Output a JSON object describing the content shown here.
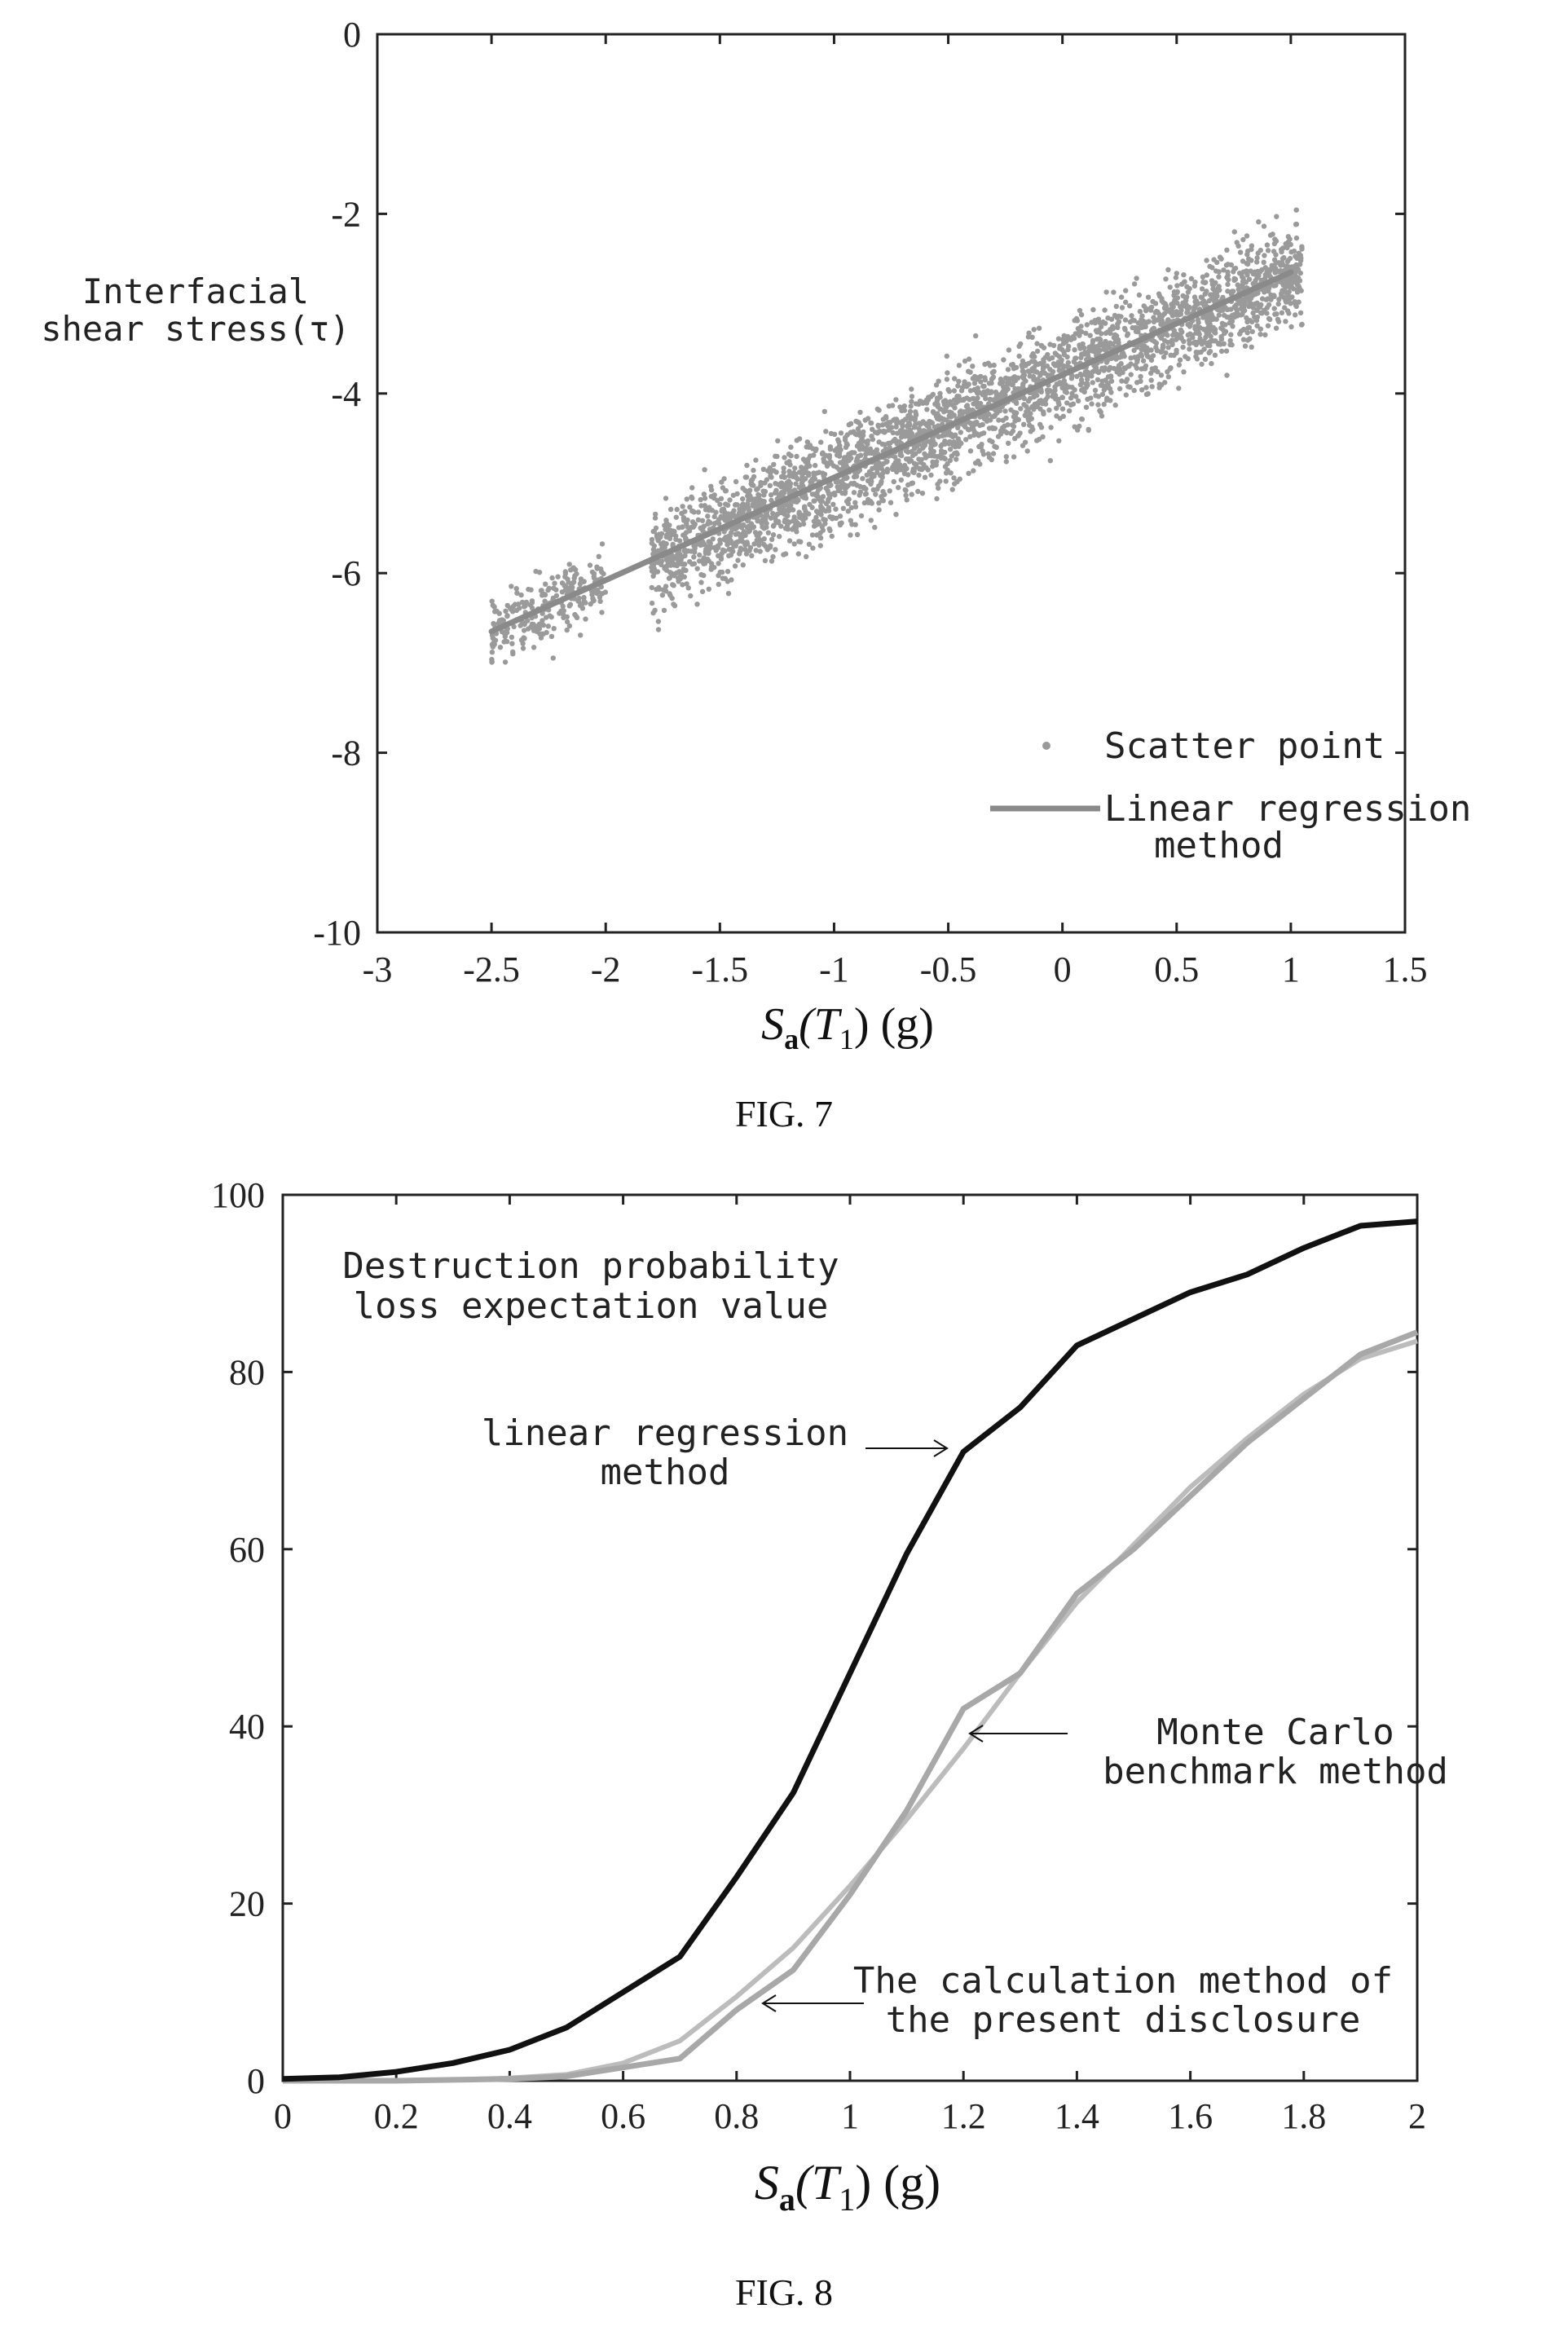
{
  "fig7": {
    "caption": "FIG. 7",
    "ylabel_line1": "Interfacial",
    "ylabel_line2": "shear stress(τ)",
    "xlabel_main": "S",
    "xlabel_sub": "a",
    "xlabel_paren": "(T",
    "xlabel_sub2": "1",
    "xlabel_end": ") (g)",
    "legend_scatter": "Scatter point",
    "legend_line1": "Linear regression",
    "legend_line2": "method",
    "chart_data": {
      "type": "scatter",
      "xlim": [
        -3,
        1.5
      ],
      "ylim": [
        -10,
        0
      ],
      "xticks": [
        "-3",
        "-2.5",
        "-2",
        "-1.5",
        "-1",
        "-0.5",
        "0",
        "0.5",
        "1",
        "1.5"
      ],
      "yticks": [
        "0",
        "-2",
        "-4",
        "-6",
        "-8",
        "-10"
      ],
      "regression": {
        "x": [
          -2.5,
          1.0
        ],
        "y": [
          -6.65,
          -2.65
        ]
      },
      "clusters": [
        {
          "x_range": [
            -2.5,
            -2.0
          ],
          "y_center_slope": 1.143,
          "y_center_intercept": -3.8,
          "spread": 0.35,
          "count": 260
        },
        {
          "x_range": [
            -1.8,
            1.05
          ],
          "y_center_slope": 1.143,
          "y_center_intercept": -3.8,
          "spread": 0.5,
          "count": 3200
        }
      ],
      "scatter_color": "#9a9a9a",
      "line_color": "#8a8a8a",
      "legend_position": "bottom-right",
      "grid": false
    }
  },
  "fig8": {
    "caption": "FIG. 8",
    "title_line1": "Destruction probability",
    "title_line2": "loss expectation value",
    "ann_linear_1": "linear regression",
    "ann_linear_2": "method",
    "ann_mc_1": "Monte Carlo",
    "ann_mc_2": "benchmark method",
    "ann_calc_1": "The calculation method of",
    "ann_calc_2": "the present disclosure",
    "xlabel_main": "S",
    "xlabel_sub": "a",
    "xlabel_paren": "(T",
    "xlabel_sub2": "1",
    "xlabel_end": ") (g)",
    "chart_data": {
      "type": "line",
      "xlim": [
        0,
        2
      ],
      "ylim": [
        0,
        100
      ],
      "xticks": [
        "0",
        "0.2",
        "0.4",
        "0.6",
        "0.8",
        "1",
        "1.2",
        "1.4",
        "1.6",
        "1.8",
        "2"
      ],
      "yticks": [
        "0",
        "20",
        "40",
        "60",
        "80",
        "100"
      ],
      "x": [
        0,
        0.1,
        0.2,
        0.3,
        0.4,
        0.5,
        0.6,
        0.7,
        0.8,
        0.9,
        1.0,
        1.1,
        1.2,
        1.3,
        1.4,
        1.5,
        1.6,
        1.7,
        1.8,
        1.9,
        2.0
      ],
      "series": [
        {
          "values": [
            0.2,
            0.4,
            1.0,
            2.0,
            3.5,
            6.0,
            10.0,
            14.0,
            23.0,
            32.5,
            46.0,
            59.5,
            71.0,
            76.0,
            83.0,
            86.0,
            89.0,
            91.0,
            94.0,
            96.5,
            97.0
          ],
          "color": "#111111",
          "width": 7
        },
        {
          "values": [
            0.0,
            0.0,
            0.0,
            0.1,
            0.2,
            0.5,
            1.5,
            2.5,
            8.0,
            12.5,
            21.0,
            30.5,
            42.0,
            46.0,
            55.0,
            60.0,
            66.0,
            72.0,
            77.0,
            82.0,
            84.5
          ],
          "color": "#a8a8a8",
          "width": 7
        },
        {
          "values": [
            0.0,
            0.0,
            0.0,
            0.1,
            0.3,
            0.7,
            2.0,
            4.5,
            9.5,
            15.0,
            22.0,
            29.5,
            37.5,
            46.0,
            54.0,
            60.5,
            67.0,
            72.5,
            77.5,
            81.5,
            83.5
          ],
          "color": "#bcbcbc",
          "width": 6
        }
      ],
      "grid": false
    }
  }
}
